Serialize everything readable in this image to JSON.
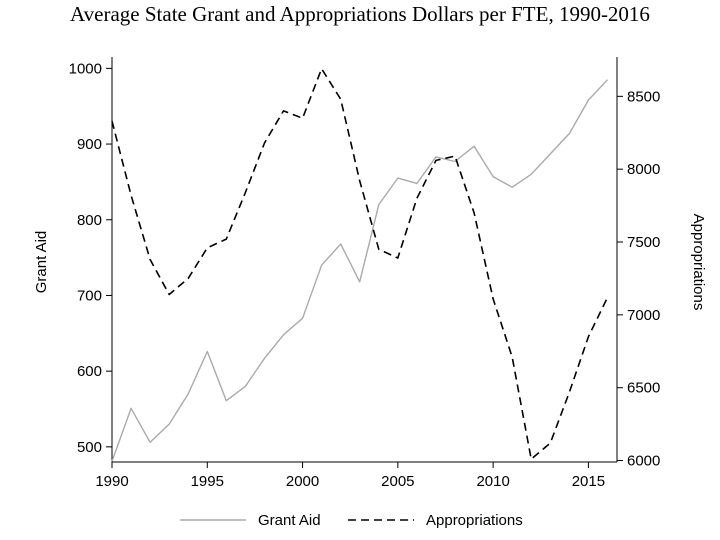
{
  "chart_data": {
    "type": "line",
    "title": "Average State Grant and Appropriations Dollars per FTE, 1990-2016",
    "xlabel": "",
    "ylabel": "Grant Aid",
    "y2label": "Appropriations",
    "x": [
      1990,
      1991,
      1992,
      1993,
      1994,
      1995,
      1996,
      1997,
      1998,
      1999,
      2000,
      2001,
      2002,
      2003,
      2004,
      2005,
      2006,
      2007,
      2008,
      2009,
      2010,
      2011,
      2012,
      2013,
      2014,
      2015,
      2016
    ],
    "xlim": [
      1990,
      2016.5
    ],
    "xticks": [
      1990,
      1995,
      2000,
      2005,
      2010,
      2015
    ],
    "ylim": [
      480,
      1015
    ],
    "yticks": [
      500,
      600,
      700,
      800,
      900,
      1000
    ],
    "y2lim": [
      5990,
      8770
    ],
    "y2ticks": [
      6000,
      6500,
      7000,
      7500,
      8000,
      8500
    ],
    "grid": false,
    "legend_position": "bottom",
    "series": [
      {
        "name": "Grant Aid",
        "axis": "left",
        "style": "solid",
        "color": "#aaaaaa",
        "values": [
          481,
          551,
          506,
          530,
          570,
          626,
          561,
          580,
          617,
          648,
          670,
          740,
          768,
          718,
          820,
          855,
          848,
          883,
          877,
          897,
          857,
          843,
          860,
          887,
          914,
          958,
          985
        ]
      },
      {
        "name": "Appropriations",
        "axis": "right",
        "style": "dashed",
        "color": "#000000",
        "values": [
          8330,
          7820,
          7380,
          7140,
          7250,
          7460,
          7520,
          7840,
          8180,
          8400,
          8350,
          8690,
          8480,
          7920,
          7450,
          7390,
          7800,
          8060,
          8090,
          7700,
          7110,
          6710,
          6010,
          6120,
          6470,
          6850,
          7120
        ]
      }
    ]
  }
}
